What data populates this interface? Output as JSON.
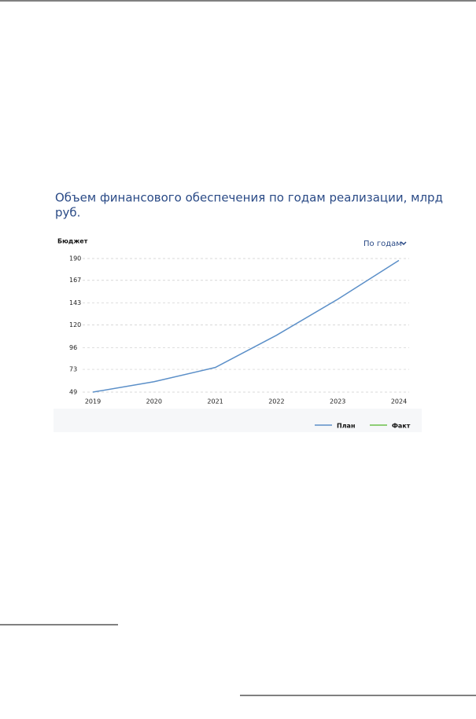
{
  "chart_data": {
    "type": "line",
    "title_lines": [
      "Объем финансового обеспечения по годам реализации, млрд",
      "руб."
    ],
    "y_label": "Бюджет",
    "categories": [
      "2019",
      "2020",
      "2021",
      "2022",
      "2023",
      "2024"
    ],
    "series": [
      {
        "name": "План",
        "color": "#5b8fc8",
        "values": [
          49,
          60,
          75,
          109,
          147,
          188
        ]
      },
      {
        "name": "Факт",
        "color": "#6cc04a",
        "values": [
          null,
          null,
          null,
          null,
          null,
          null
        ]
      }
    ],
    "ylim": [
      49,
      190
    ],
    "yticks": [
      49,
      73,
      96,
      120,
      143,
      167,
      190
    ],
    "grid": true
  },
  "controls": {
    "period": "По годам"
  }
}
